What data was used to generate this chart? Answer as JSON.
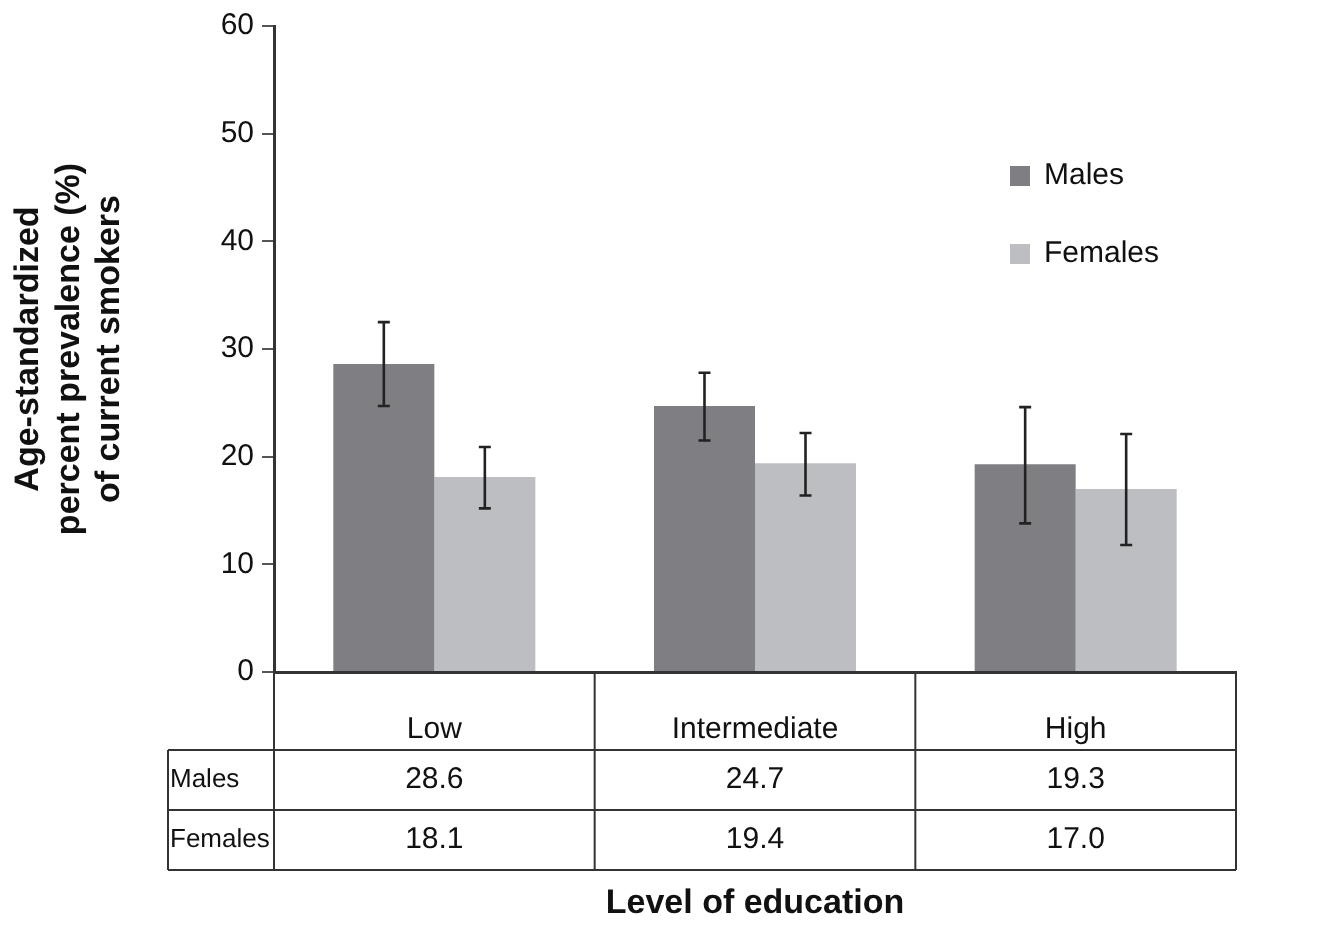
{
  "chart_data": {
    "type": "bar",
    "ylabel": "Age-standardized\npercent prevalence (%)\nof current smokers",
    "xlabel": "Level of education",
    "categories": [
      "Low",
      "Intermediate",
      "High"
    ],
    "series": [
      {
        "name": "Males",
        "color": "#7f7f83",
        "values": [
          28.6,
          24.7,
          19.3
        ],
        "value_labels": [
          "28.6",
          "24.7",
          "19.3"
        ],
        "errors": [
          [
            24.7,
            32.5
          ],
          [
            21.5,
            27.8
          ],
          [
            13.8,
            24.6
          ]
        ]
      },
      {
        "name": "Females",
        "color": "#bdbec2",
        "values": [
          18.1,
          19.4,
          17.0
        ],
        "value_labels": [
          "18.1",
          "19.4",
          "17.0"
        ],
        "errors": [
          [
            15.2,
            20.9
          ],
          [
            16.4,
            22.2
          ],
          [
            11.8,
            22.1
          ]
        ]
      }
    ],
    "ylim": [
      0,
      60
    ],
    "yticks": [
      0,
      10,
      20,
      30,
      40,
      50,
      60
    ],
    "grid": false,
    "legend": "top right"
  }
}
